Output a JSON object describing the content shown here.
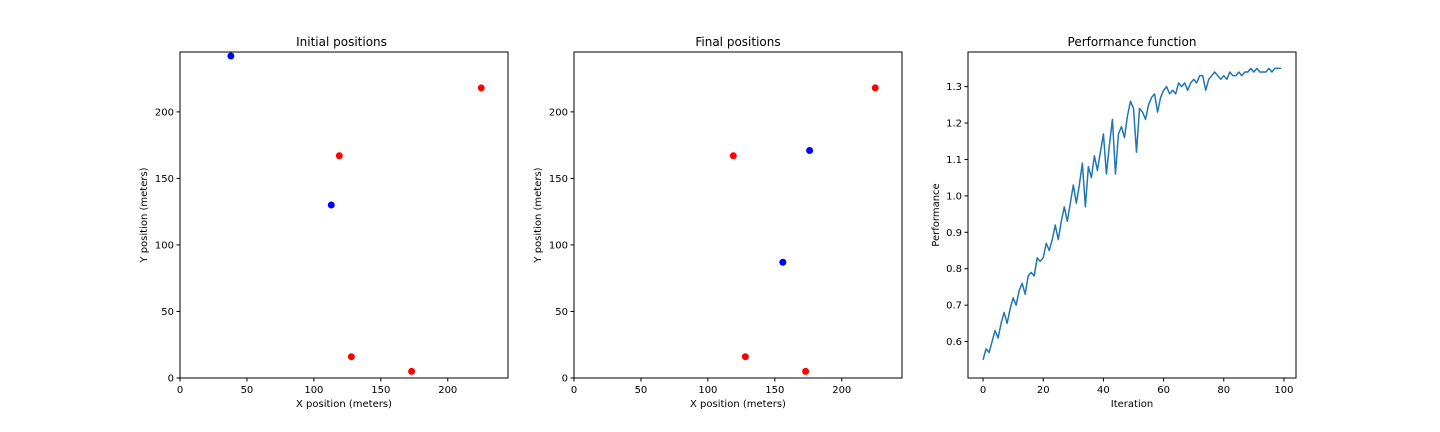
{
  "chart_data": [
    {
      "type": "scatter",
      "title": "Initial positions",
      "xlabel": "X position (meters)",
      "ylabel": "Y position (meters)",
      "xlim": [
        0,
        245
      ],
      "ylim": [
        0,
        245
      ],
      "xticks": [
        "0",
        "50",
        "100",
        "150",
        "200"
      ],
      "yticks": [
        "0",
        "50",
        "100",
        "150",
        "200"
      ],
      "grid": false,
      "series": [
        {
          "color": "#0000ff",
          "points": [
            [
              38,
              242
            ],
            [
              113,
              130
            ]
          ]
        },
        {
          "color": "#ff0000",
          "points": [
            [
              225,
              218
            ],
            [
              119,
              167
            ],
            [
              128,
              16
            ],
            [
              173,
              5
            ]
          ]
        }
      ]
    },
    {
      "type": "scatter",
      "title": "Final positions",
      "xlabel": "X position (meters)",
      "ylabel": "Y position (meters)",
      "xlim": [
        0,
        245
      ],
      "ylim": [
        0,
        245
      ],
      "xticks": [
        "0",
        "50",
        "100",
        "150",
        "200"
      ],
      "yticks": [
        "0",
        "50",
        "100",
        "150",
        "200"
      ],
      "grid": false,
      "series": [
        {
          "color": "#0000ff",
          "points": [
            [
              176,
              171
            ],
            [
              156,
              87
            ]
          ]
        },
        {
          "color": "#ff0000",
          "points": [
            [
              225,
              218
            ],
            [
              119,
              167
            ],
            [
              128,
              16
            ],
            [
              173,
              5
            ]
          ]
        }
      ]
    },
    {
      "type": "line",
      "title": "Performance function",
      "xlabel": "Iteration",
      "ylabel": "Performance",
      "xlim": [
        -5,
        104
      ],
      "ylim": [
        0.5,
        1.395
      ],
      "xticks": [
        "0",
        "20",
        "40",
        "60",
        "80",
        "100"
      ],
      "yticks": [
        "0.6",
        "0.7",
        "0.8",
        "0.9",
        "1.0",
        "1.1",
        "1.2",
        "1.3"
      ],
      "grid": false,
      "series": [
        {
          "color": "#1f77b4",
          "x": [
            0,
            1,
            2,
            3,
            4,
            5,
            6,
            7,
            8,
            9,
            10,
            11,
            12,
            13,
            14,
            15,
            16,
            17,
            18,
            19,
            20,
            21,
            22,
            23,
            24,
            25,
            26,
            27,
            28,
            29,
            30,
            31,
            32,
            33,
            34,
            35,
            36,
            37,
            38,
            39,
            40,
            41,
            42,
            43,
            44,
            45,
            46,
            47,
            48,
            49,
            50,
            51,
            52,
            53,
            54,
            55,
            56,
            57,
            58,
            59,
            60,
            61,
            62,
            63,
            64,
            65,
            66,
            67,
            68,
            69,
            70,
            71,
            72,
            73,
            74,
            75,
            76,
            77,
            78,
            79,
            80,
            81,
            82,
            83,
            84,
            85,
            86,
            87,
            88,
            89,
            90,
            91,
            92,
            93,
            94,
            95,
            96,
            97,
            98,
            99
          ],
          "values": [
            0.55,
            0.58,
            0.57,
            0.6,
            0.63,
            0.61,
            0.65,
            0.68,
            0.65,
            0.69,
            0.72,
            0.7,
            0.74,
            0.76,
            0.73,
            0.78,
            0.79,
            0.78,
            0.83,
            0.82,
            0.83,
            0.87,
            0.85,
            0.88,
            0.92,
            0.88,
            0.93,
            0.97,
            0.93,
            0.98,
            1.03,
            0.98,
            1.03,
            1.09,
            0.97,
            1.08,
            1.05,
            1.11,
            1.07,
            1.12,
            1.17,
            1.06,
            1.14,
            1.21,
            1.06,
            1.17,
            1.19,
            1.16,
            1.22,
            1.26,
            1.24,
            1.12,
            1.24,
            1.23,
            1.21,
            1.25,
            1.27,
            1.28,
            1.23,
            1.27,
            1.29,
            1.3,
            1.28,
            1.29,
            1.28,
            1.31,
            1.3,
            1.31,
            1.29,
            1.31,
            1.32,
            1.31,
            1.33,
            1.33,
            1.29,
            1.32,
            1.33,
            1.34,
            1.33,
            1.32,
            1.33,
            1.32,
            1.34,
            1.33,
            1.33,
            1.34,
            1.33,
            1.34,
            1.34,
            1.35,
            1.34,
            1.35,
            1.34,
            1.34,
            1.34,
            1.35,
            1.34,
            1.35,
            1.35,
            1.35
          ]
        }
      ]
    }
  ]
}
